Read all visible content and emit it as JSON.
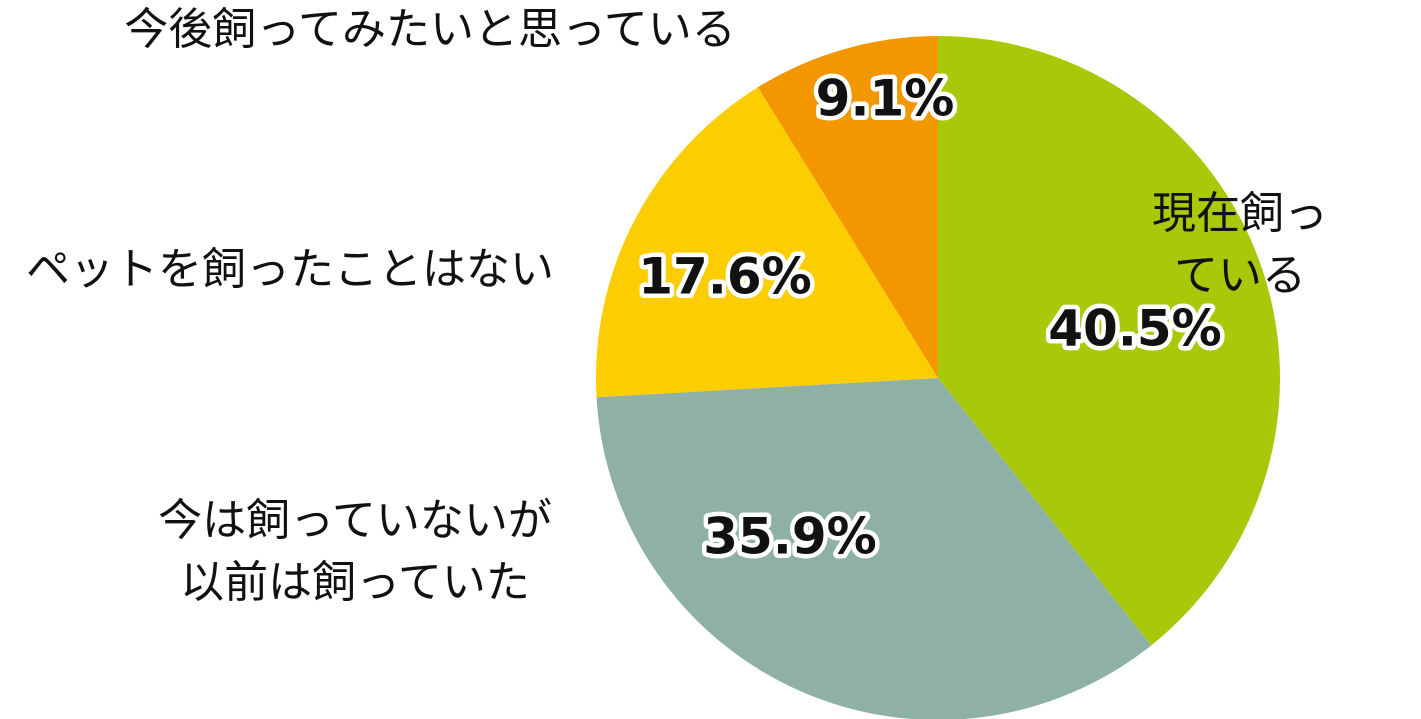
{
  "chart_data": {
    "type": "pie",
    "categories": [
      "現在飼っている",
      "今は飼っていないが\n以前は飼っていた",
      "ペットを飼ったことはない",
      "今後飼ってみたいと思っている"
    ],
    "values": [
      40.5,
      35.9,
      17.6,
      9.1
    ],
    "value_labels": [
      "40.5%",
      "35.9%",
      "17.6%",
      "9.1%"
    ],
    "colors": [
      "#a8c90a",
      "#8eb0a7",
      "#fccd00",
      "#f39700"
    ]
  }
}
